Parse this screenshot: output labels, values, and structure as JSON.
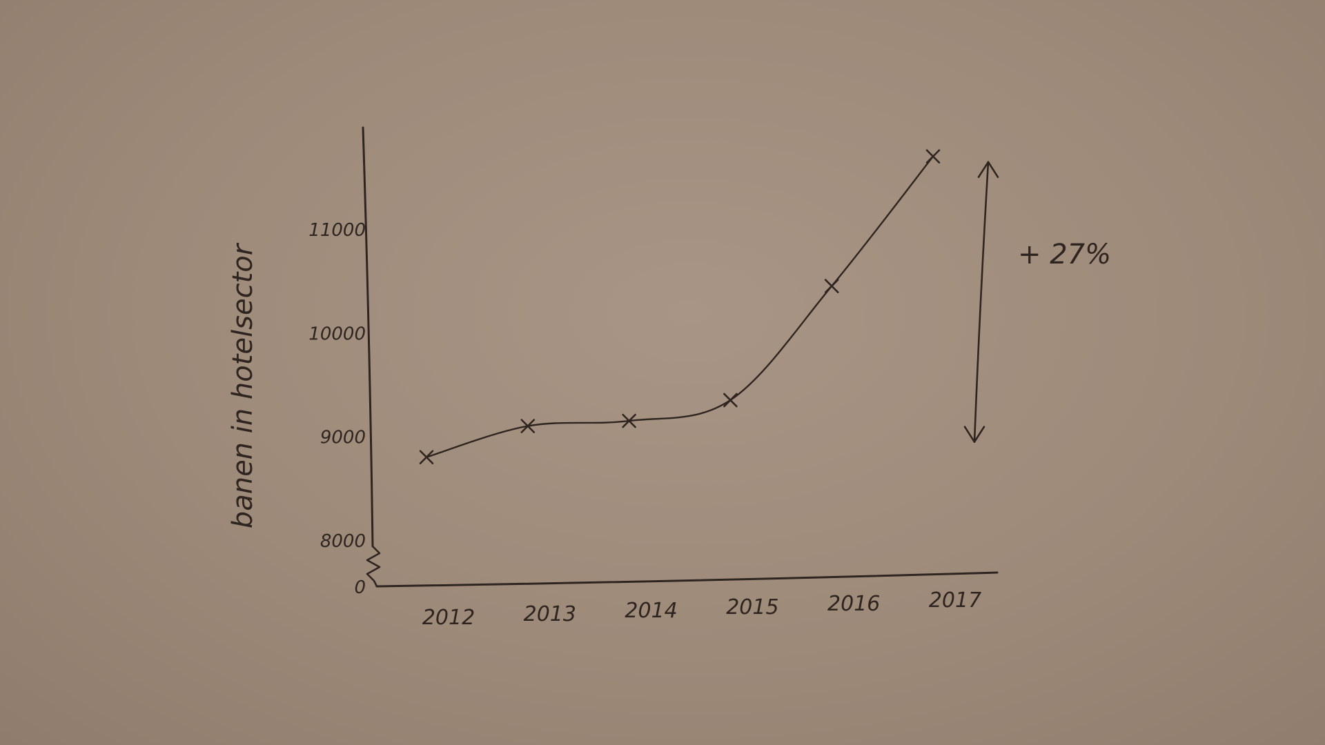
{
  "chart_data": {
    "type": "line",
    "title": "",
    "xlabel": "",
    "ylabel": "banen in hotelsector",
    "x": [
      "2012",
      "2013",
      "2014",
      "2015",
      "2016",
      "2017"
    ],
    "series": [
      {
        "values": [
          8800,
          9100,
          9150,
          9350,
          10450,
          11700
        ]
      }
    ],
    "y_ticks": [
      {
        "value": 0,
        "label": "0"
      },
      {
        "value": 8000,
        "label": "8000"
      },
      {
        "value": 9000,
        "label": "9000"
      },
      {
        "value": 10000,
        "label": "10000"
      },
      {
        "value": 11000,
        "label": "11000"
      }
    ],
    "y_axis_break": true,
    "ylim": [
      8000,
      12000
    ],
    "grid": false,
    "legend": "none",
    "annotation": {
      "text": "+ 27%",
      "from_value": 9000,
      "to_value": 11700,
      "style": "double-arrow"
    },
    "ink_color": "#2e2520"
  }
}
